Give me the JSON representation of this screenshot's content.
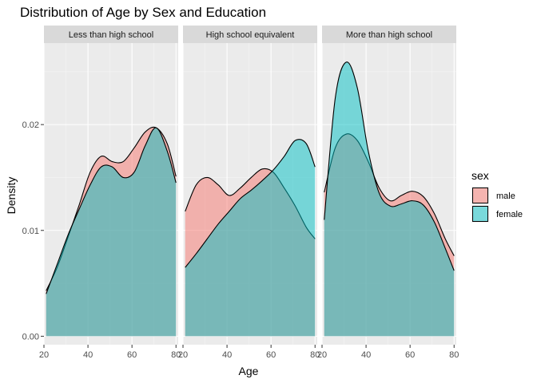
{
  "chart_data": {
    "type": "area",
    "title": "Distribution of Age by Sex and Education",
    "xlabel": "Age",
    "ylabel": "Density",
    "xlim": [
      20,
      81
    ],
    "ylim": [
      -0.0008,
      0.0277
    ],
    "x_ticks": [
      20,
      40,
      60,
      80
    ],
    "y_ticks": [
      0.0,
      0.01,
      0.02
    ],
    "y_tick_labels": [
      "0.00",
      "0.01",
      "0.02"
    ],
    "grid": true,
    "legend": {
      "title": "sex",
      "position": "right",
      "entries": [
        {
          "label": "male",
          "color": "#F8766D"
        },
        {
          "label": "female",
          "color": "#00BFC4"
        }
      ]
    },
    "panels": [
      {
        "facet": "Less than high school",
        "series": [
          {
            "name": "male",
            "x": [
              21,
              26,
              31,
              36,
              41,
              46,
              51,
              56,
              61,
              66,
              71,
              76,
              80
            ],
            "y": [
              0.0043,
              0.0065,
              0.0094,
              0.0124,
              0.0155,
              0.017,
              0.0165,
              0.0165,
              0.0178,
              0.0193,
              0.0197,
              0.0182,
              0.0151
            ]
          },
          {
            "name": "female",
            "x": [
              21,
              26,
              31,
              36,
              41,
              46,
              51,
              56,
              61,
              66,
              71,
              76,
              80
            ],
            "y": [
              0.004,
              0.0068,
              0.0096,
              0.012,
              0.0143,
              0.016,
              0.016,
              0.015,
              0.0155,
              0.018,
              0.0197,
              0.0175,
              0.0145
            ]
          }
        ]
      },
      {
        "facet": "High school equivalent",
        "series": [
          {
            "name": "male",
            "x": [
              21,
              26,
              31,
              36,
              41,
              46,
              51,
              56,
              61,
              66,
              71,
              76,
              80
            ],
            "y": [
              0.0118,
              0.0143,
              0.015,
              0.0143,
              0.0133,
              0.014,
              0.015,
              0.0158,
              0.0155,
              0.014,
              0.0123,
              0.0103,
              0.0092
            ]
          },
          {
            "name": "female",
            "x": [
              21,
              26,
              31,
              36,
              41,
              46,
              51,
              56,
              61,
              66,
              71,
              76,
              80
            ],
            "y": [
              0.0065,
              0.0078,
              0.0092,
              0.0106,
              0.0118,
              0.013,
              0.0138,
              0.0147,
              0.0157,
              0.017,
              0.0185,
              0.0182,
              0.016
            ]
          }
        ]
      },
      {
        "facet": "More than high school",
        "series": [
          {
            "name": "male",
            "x": [
              21,
              26,
              31,
              36,
              41,
              46,
              51,
              56,
              61,
              66,
              71,
              76,
              80
            ],
            "y": [
              0.0136,
              0.0178,
              0.0191,
              0.0185,
              0.0165,
              0.014,
              0.0128,
              0.0133,
              0.0137,
              0.0132,
              0.0116,
              0.0092,
              0.0076
            ]
          },
          {
            "name": "female",
            "x": [
              21,
              26,
              31,
              36,
              41,
              46,
              51,
              56,
              61,
              66,
              71,
              76,
              80
            ],
            "y": [
              0.011,
              0.0225,
              0.0259,
              0.0235,
              0.0175,
              0.0135,
              0.0123,
              0.0125,
              0.0128,
              0.0124,
              0.0108,
              0.0083,
              0.0062
            ]
          }
        ]
      }
    ]
  }
}
